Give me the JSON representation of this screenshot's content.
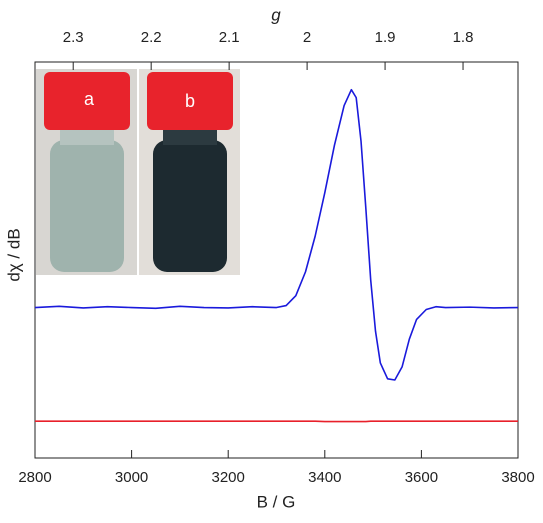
{
  "chart_data": {
    "type": "line",
    "xlabel": "B / G",
    "ylabel": "dχ / dB",
    "x2label": "g",
    "annotations": [
      "a",
      "b"
    ],
    "x": [
      2800,
      2850,
      2900,
      2950,
      3000,
      3050,
      3100,
      3150,
      3200,
      3250,
      3300,
      3320,
      3340,
      3360,
      3380,
      3400,
      3420,
      3440,
      3455,
      3465,
      3475,
      3485,
      3495,
      3505,
      3515,
      3530,
      3545,
      3560,
      3575,
      3590,
      3610,
      3630,
      3650,
      3700,
      3750,
      3800
    ],
    "series": [
      {
        "color": "#1a1adc",
        "values": [
          38,
          38.3,
          37.9,
          38.2,
          38,
          37.8,
          38.3,
          38,
          37.9,
          38.2,
          38,
          38.5,
          41,
          47,
          56,
          67,
          79,
          89,
          93,
          91,
          80,
          63,
          45,
          32,
          24,
          20,
          19.7,
          23,
          30,
          35,
          37.5,
          38.2,
          38,
          38.1,
          37.9,
          38
        ]
      },
      {
        "color": "#e8202a",
        "values": [
          9.3,
          9.3,
          9.3,
          9.3,
          9.3,
          9.3,
          9.3,
          9.3,
          9.3,
          9.3,
          9.3,
          9.3,
          9.3,
          9.3,
          9.3,
          9.2,
          9.2,
          9.2,
          9.2,
          9.2,
          9.2,
          9.2,
          9.3,
          9.3,
          9.3,
          9.3,
          9.3,
          9.3,
          9.3,
          9.3,
          9.3,
          9.3,
          9.3,
          9.3,
          9.3,
          9.3
        ]
      }
    ],
    "xlim": [
      2800,
      3800
    ],
    "xticks": [
      2800,
      3000,
      3200,
      3400,
      3600,
      3800
    ],
    "ylim": [
      0,
      100
    ],
    "x2lim": [
      2.349,
      1.7295
    ],
    "x2ticks": [
      2.3,
      2.2,
      2.1,
      2.0,
      1.9,
      1.8
    ]
  }
}
